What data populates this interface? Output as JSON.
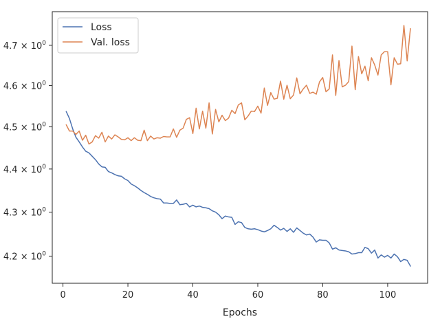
{
  "chart_data": {
    "type": "line",
    "title": "",
    "xlabel": "Epochs",
    "ylabel": "",
    "yscale": "log",
    "xlim": [
      -3.3,
      112.3
    ],
    "ylim": [
      4.14,
      4.785
    ],
    "xticks": [
      0,
      20,
      40,
      60,
      80,
      100
    ],
    "xtick_labels": [
      "0",
      "20",
      "40",
      "60",
      "80",
      "100"
    ],
    "yticks": [
      4.2,
      4.3,
      4.4,
      4.5,
      4.6,
      4.7
    ],
    "ytick_labels": [
      "4.2 × 10",
      "4.3 × 10",
      "4.4 × 10",
      "4.5 × 10",
      "4.6 × 10",
      "4.7 × 10"
    ],
    "ytick_exponent": "0",
    "grid": false,
    "legend_position": "top-left",
    "x_start": 1,
    "series": [
      {
        "name": "Loss",
        "color": "#4c72b0",
        "values": [
          4.537,
          4.52,
          4.495,
          4.475,
          4.464,
          4.452,
          4.442,
          4.438,
          4.43,
          4.422,
          4.412,
          4.405,
          4.404,
          4.394,
          4.391,
          4.387,
          4.384,
          4.383,
          4.377,
          4.373,
          4.365,
          4.361,
          4.356,
          4.35,
          4.345,
          4.341,
          4.336,
          4.333,
          4.331,
          4.33,
          4.321,
          4.321,
          4.32,
          4.32,
          4.328,
          4.317,
          4.318,
          4.32,
          4.312,
          4.316,
          4.312,
          4.314,
          4.311,
          4.31,
          4.308,
          4.303,
          4.3,
          4.294,
          4.285,
          4.291,
          4.289,
          4.288,
          4.272,
          4.278,
          4.276,
          4.265,
          4.262,
          4.261,
          4.262,
          4.26,
          4.257,
          4.255,
          4.258,
          4.262,
          4.27,
          4.265,
          4.259,
          4.263,
          4.256,
          4.262,
          4.254,
          4.264,
          4.258,
          4.252,
          4.248,
          4.25,
          4.243,
          4.232,
          4.237,
          4.236,
          4.236,
          4.23,
          4.216,
          4.219,
          4.214,
          4.213,
          4.212,
          4.21,
          4.205,
          4.206,
          4.208,
          4.208,
          4.22,
          4.217,
          4.207,
          4.214,
          4.196,
          4.203,
          4.198,
          4.202,
          4.196,
          4.205,
          4.199,
          4.188,
          4.193,
          4.191,
          4.178
        ]
      },
      {
        "name": "Val. loss",
        "color": "#dd8452",
        "values": [
          4.505,
          4.49,
          4.49,
          4.482,
          4.49,
          4.468,
          4.48,
          4.459,
          4.464,
          4.479,
          4.473,
          4.487,
          4.464,
          4.478,
          4.471,
          4.481,
          4.476,
          4.47,
          4.469,
          4.474,
          4.467,
          4.474,
          4.468,
          4.467,
          4.492,
          4.467,
          4.478,
          4.471,
          4.474,
          4.473,
          4.477,
          4.476,
          4.476,
          4.495,
          4.475,
          4.492,
          4.497,
          4.518,
          4.522,
          4.484,
          4.545,
          4.495,
          4.538,
          4.497,
          4.558,
          4.483,
          4.542,
          4.512,
          4.528,
          4.515,
          4.521,
          4.54,
          4.532,
          4.553,
          4.558,
          4.517,
          4.526,
          4.538,
          4.537,
          4.55,
          4.533,
          4.594,
          4.552,
          4.583,
          4.567,
          4.569,
          4.611,
          4.567,
          4.601,
          4.568,
          4.577,
          4.619,
          4.58,
          4.592,
          4.601,
          4.581,
          4.584,
          4.579,
          4.609,
          4.62,
          4.585,
          4.592,
          4.676,
          4.576,
          4.662,
          4.597,
          4.601,
          4.61,
          4.698,
          4.59,
          4.672,
          4.629,
          4.648,
          4.612,
          4.669,
          4.651,
          4.626,
          4.676,
          4.684,
          4.684,
          4.602,
          4.669,
          4.653,
          4.654,
          4.75,
          4.661,
          4.742
        ]
      }
    ]
  }
}
